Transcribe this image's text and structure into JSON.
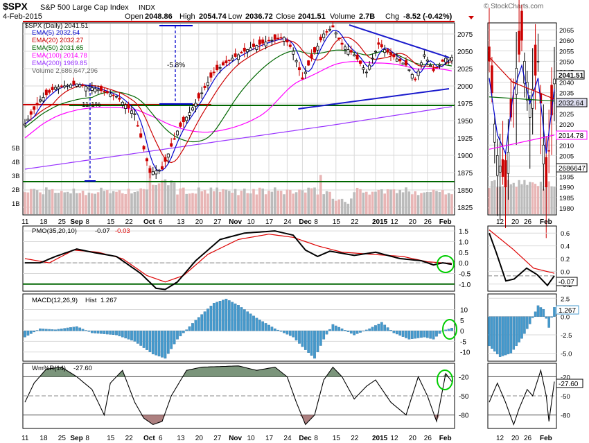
{
  "header": {
    "symbol": "$SPX",
    "name": "S&P 500 Large Cap Index",
    "exchange": "INDX",
    "date": "4-Feb-2015",
    "open_label": "Open",
    "open": "2048.86",
    "high_label": "High",
    "high": "2054.74",
    "low_label": "Low",
    "low": "2036.72",
    "close_label": "Close",
    "close": "2041.51",
    "volume_label": "Volume",
    "volume": "2.7B",
    "chg_label": "Chg",
    "chg": "-8.52 (-0.42%)",
    "chg_icon": "down-triangle-icon",
    "watermark": "© StockCharts.com"
  },
  "price_legend": [
    {
      "label": "$SPX (Daily) 2041.51",
      "color": "#000000"
    },
    {
      "label": "EMA(5) 2032.64",
      "color": "#0000cc"
    },
    {
      "label": "EMA(20) 2032.27",
      "color": "#cc0000"
    },
    {
      "label": "EMA(50) 2031.65",
      "color": "#006600"
    },
    {
      "label": "EMA(100) 2014.78",
      "color": "#ff00ff"
    },
    {
      "label": "EMA(200) 1969.85",
      "color": "#9933ff"
    },
    {
      "label": "Volume 2,686,647,296",
      "color": "#999999"
    }
  ],
  "annotations": {
    "pct_down": "-5.8%",
    "pct_up": "11.1%"
  },
  "indicators": {
    "pmo": {
      "label": "PMO(35,20,10)",
      "value1": "-0.07",
      "value2": "-0.03"
    },
    "macd": {
      "label": "MACD(12,26,9)",
      "hist_label": "Hist",
      "hist": "1.267"
    },
    "wpr": {
      "label": "Wm%R(14)",
      "value": "-27.60"
    }
  },
  "side_labels": {
    "close": "2041.51",
    "ema5": "2032.64",
    "ema100": "2014.78",
    "volume": "2686647",
    "pmo": "-0.07",
    "macd": "1.267",
    "wpr": "-27.60"
  },
  "chart_data": [
    {
      "type": "candlestick",
      "title": "$SPX S&P 500 Large Cap Index (Daily)",
      "x_ticks": [
        "11",
        "18",
        "25",
        "Sep",
        "8",
        "15",
        "22",
        "Oct",
        "6",
        "13",
        "20",
        "27",
        "Nov",
        "10",
        "17",
        "24",
        "Dec",
        "8",
        "15",
        "22",
        "2015",
        "12",
        "20",
        "26",
        "Feb"
      ],
      "y_ticks": [
        1825,
        1850,
        1875,
        1900,
        1925,
        1950,
        1975,
        2000,
        2025,
        2050,
        2075
      ],
      "ylim": [
        1815,
        2090
      ],
      "volume_ticks": [
        "1B",
        "2B",
        "3B",
        "4B",
        "5B"
      ],
      "close_path": [
        [
          0,
          1945
        ],
        [
          5,
          1980
        ],
        [
          10,
          1998
        ],
        [
          17,
          2003
        ],
        [
          24,
          1995
        ],
        [
          30,
          1985
        ],
        [
          36,
          1960
        ],
        [
          41,
          1875
        ],
        [
          45,
          1880
        ],
        [
          50,
          1935
        ],
        [
          56,
          1975
        ],
        [
          62,
          2020
        ],
        [
          68,
          2040
        ],
        [
          74,
          2055
        ],
        [
          80,
          2065
        ],
        [
          85,
          2070
        ],
        [
          88,
          2050
        ],
        [
          91,
          2010
        ],
        [
          94,
          2040
        ],
        [
          98,
          2075
        ],
        [
          101,
          2085
        ],
        [
          104,
          2060
        ],
        [
          108,
          2045
        ],
        [
          112,
          2020
        ],
        [
          116,
          2060
        ],
        [
          120,
          2045
        ],
        [
          125,
          2030
        ],
        [
          128,
          2010
        ],
        [
          131,
          2045
        ],
        [
          134,
          2022
        ],
        [
          138,
          2040
        ],
        [
          140,
          2041.51
        ]
      ],
      "trendline_upper": [
        [
          100,
          2088
        ],
        [
          140,
          2045
        ]
      ],
      "trendline_lower": [
        [
          91,
          1963
        ],
        [
          140,
          1996
        ]
      ],
      "horizontal_lines": {
        "red_top": 2093,
        "red_mid": 1973,
        "green_mid": 1972
      },
      "last_values": {
        "close": 2041.51,
        "ema5": 2032.64,
        "ema20": 2032.27,
        "ema50": 2031.65,
        "ema100": 2014.78,
        "ema200": 1969.85
      }
    },
    {
      "type": "line",
      "title": "PMO(35,20,10)",
      "y_ticks": [
        -1.0,
        -0.5,
        0.0,
        0.5,
        1.0,
        1.5
      ],
      "ylim": [
        -1.3,
        1.7
      ],
      "series": [
        {
          "name": "PMO",
          "points": [
            [
              0,
              0
            ],
            [
              5,
              0
            ],
            [
              10,
              0.3
            ],
            [
              17,
              0.65
            ],
            [
              22,
              0.5
            ],
            [
              30,
              0.3
            ],
            [
              38,
              -0.5
            ],
            [
              43,
              -1.2
            ],
            [
              46,
              -1.25
            ],
            [
              50,
              -0.9
            ],
            [
              56,
              0.1
            ],
            [
              64,
              1.1
            ],
            [
              72,
              1.4
            ],
            [
              82,
              1.5
            ],
            [
              88,
              1.3
            ],
            [
              92,
              0.6
            ],
            [
              96,
              0.3
            ],
            [
              100,
              0.55
            ],
            [
              108,
              0.35
            ],
            [
              115,
              0.5
            ],
            [
              123,
              0.2
            ],
            [
              130,
              0.1
            ],
            [
              134,
              -0.1
            ],
            [
              137,
              0.0
            ],
            [
              140,
              -0.07
            ]
          ]
        },
        {
          "name": "Signal",
          "points": [
            [
              0,
              0.2
            ],
            [
              8,
              0.0
            ],
            [
              16,
              0.6
            ],
            [
              24,
              0.5
            ],
            [
              32,
              0.2
            ],
            [
              40,
              -0.6
            ],
            [
              46,
              -0.9
            ],
            [
              52,
              -0.6
            ],
            [
              60,
              0.4
            ],
            [
              70,
              1.1
            ],
            [
              80,
              1.35
            ],
            [
              88,
              1.2
            ],
            [
              96,
              0.8
            ],
            [
              104,
              0.5
            ],
            [
              114,
              0.4
            ],
            [
              124,
              0.3
            ],
            [
              132,
              0.05
            ],
            [
              140,
              -0.03
            ]
          ]
        }
      ],
      "reference_line": -1.0
    },
    {
      "type": "bar",
      "title": "MACD(12,26,9) Hist",
      "y_ticks": [
        -10,
        -5,
        0,
        5,
        10
      ],
      "ylim": [
        -14,
        17
      ],
      "histogram_points": [
        [
          0,
          -3
        ],
        [
          5,
          1
        ],
        [
          10,
          0.5
        ],
        [
          17,
          2
        ],
        [
          22,
          -1
        ],
        [
          30,
          -2
        ],
        [
          36,
          -5
        ],
        [
          42,
          -11
        ],
        [
          46,
          -13
        ],
        [
          50,
          -4
        ],
        [
          56,
          5
        ],
        [
          62,
          13
        ],
        [
          66,
          15
        ],
        [
          70,
          12
        ],
        [
          76,
          6
        ],
        [
          82,
          1
        ],
        [
          88,
          -3
        ],
        [
          92,
          -9
        ],
        [
          95,
          -13
        ],
        [
          98,
          -4
        ],
        [
          101,
          3
        ],
        [
          104,
          1
        ],
        [
          108,
          -2
        ],
        [
          113,
          1
        ],
        [
          117,
          4
        ],
        [
          121,
          -1
        ],
        [
          126,
          -4
        ],
        [
          131,
          -3
        ],
        [
          134,
          -4
        ],
        [
          137,
          0
        ],
        [
          140,
          1.267
        ]
      ]
    },
    {
      "type": "line",
      "title": "Wm%R(14)",
      "y_ticks": [
        -20,
        -50,
        -80
      ],
      "ylim": [
        -100,
        0
      ],
      "series": [
        {
          "name": "Wm%R",
          "points": [
            [
              0,
              -60
            ],
            [
              3,
              -30
            ],
            [
              7,
              -8
            ],
            [
              12,
              -5
            ],
            [
              17,
              -20
            ],
            [
              22,
              -40
            ],
            [
              26,
              -80
            ],
            [
              28,
              -30
            ],
            [
              32,
              -10
            ],
            [
              36,
              -60
            ],
            [
              39,
              -85
            ],
            [
              42,
              -95
            ],
            [
              45,
              -90
            ],
            [
              48,
              -50
            ],
            [
              53,
              -10
            ],
            [
              58,
              -5
            ],
            [
              64,
              -4
            ],
            [
              70,
              -3
            ],
            [
              76,
              -10
            ],
            [
              82,
              -5
            ],
            [
              86,
              -20
            ],
            [
              89,
              -60
            ],
            [
              92,
              -95
            ],
            [
              95,
              -80
            ],
            [
              98,
              -25
            ],
            [
              101,
              -5
            ],
            [
              104,
              -20
            ],
            [
              108,
              -55
            ],
            [
              112,
              -35
            ],
            [
              115,
              -25
            ],
            [
              120,
              -60
            ],
            [
              125,
              -80
            ],
            [
              129,
              -20
            ],
            [
              132,
              -50
            ],
            [
              135,
              -90
            ],
            [
              138,
              -15
            ],
            [
              140,
              -27.6
            ]
          ]
        }
      ]
    }
  ],
  "colors": {
    "grid": "#d9d9d9",
    "frame": "#000000",
    "macd": "#4499cc",
    "pmo_signal": "#dd0000",
    "wpr_fill": "#5a7a5a",
    "wpr_fill_low": "#8a4a4a",
    "ema100": "#ff00ff",
    "ema200": "#9933ff",
    "ema50": "#006600",
    "ema20": "#cc0000",
    "ema5": "#0000cc",
    "annotation": "#00cc00",
    "volume_up": "#e8b5b5",
    "volume_down": "#bbbbbb"
  }
}
